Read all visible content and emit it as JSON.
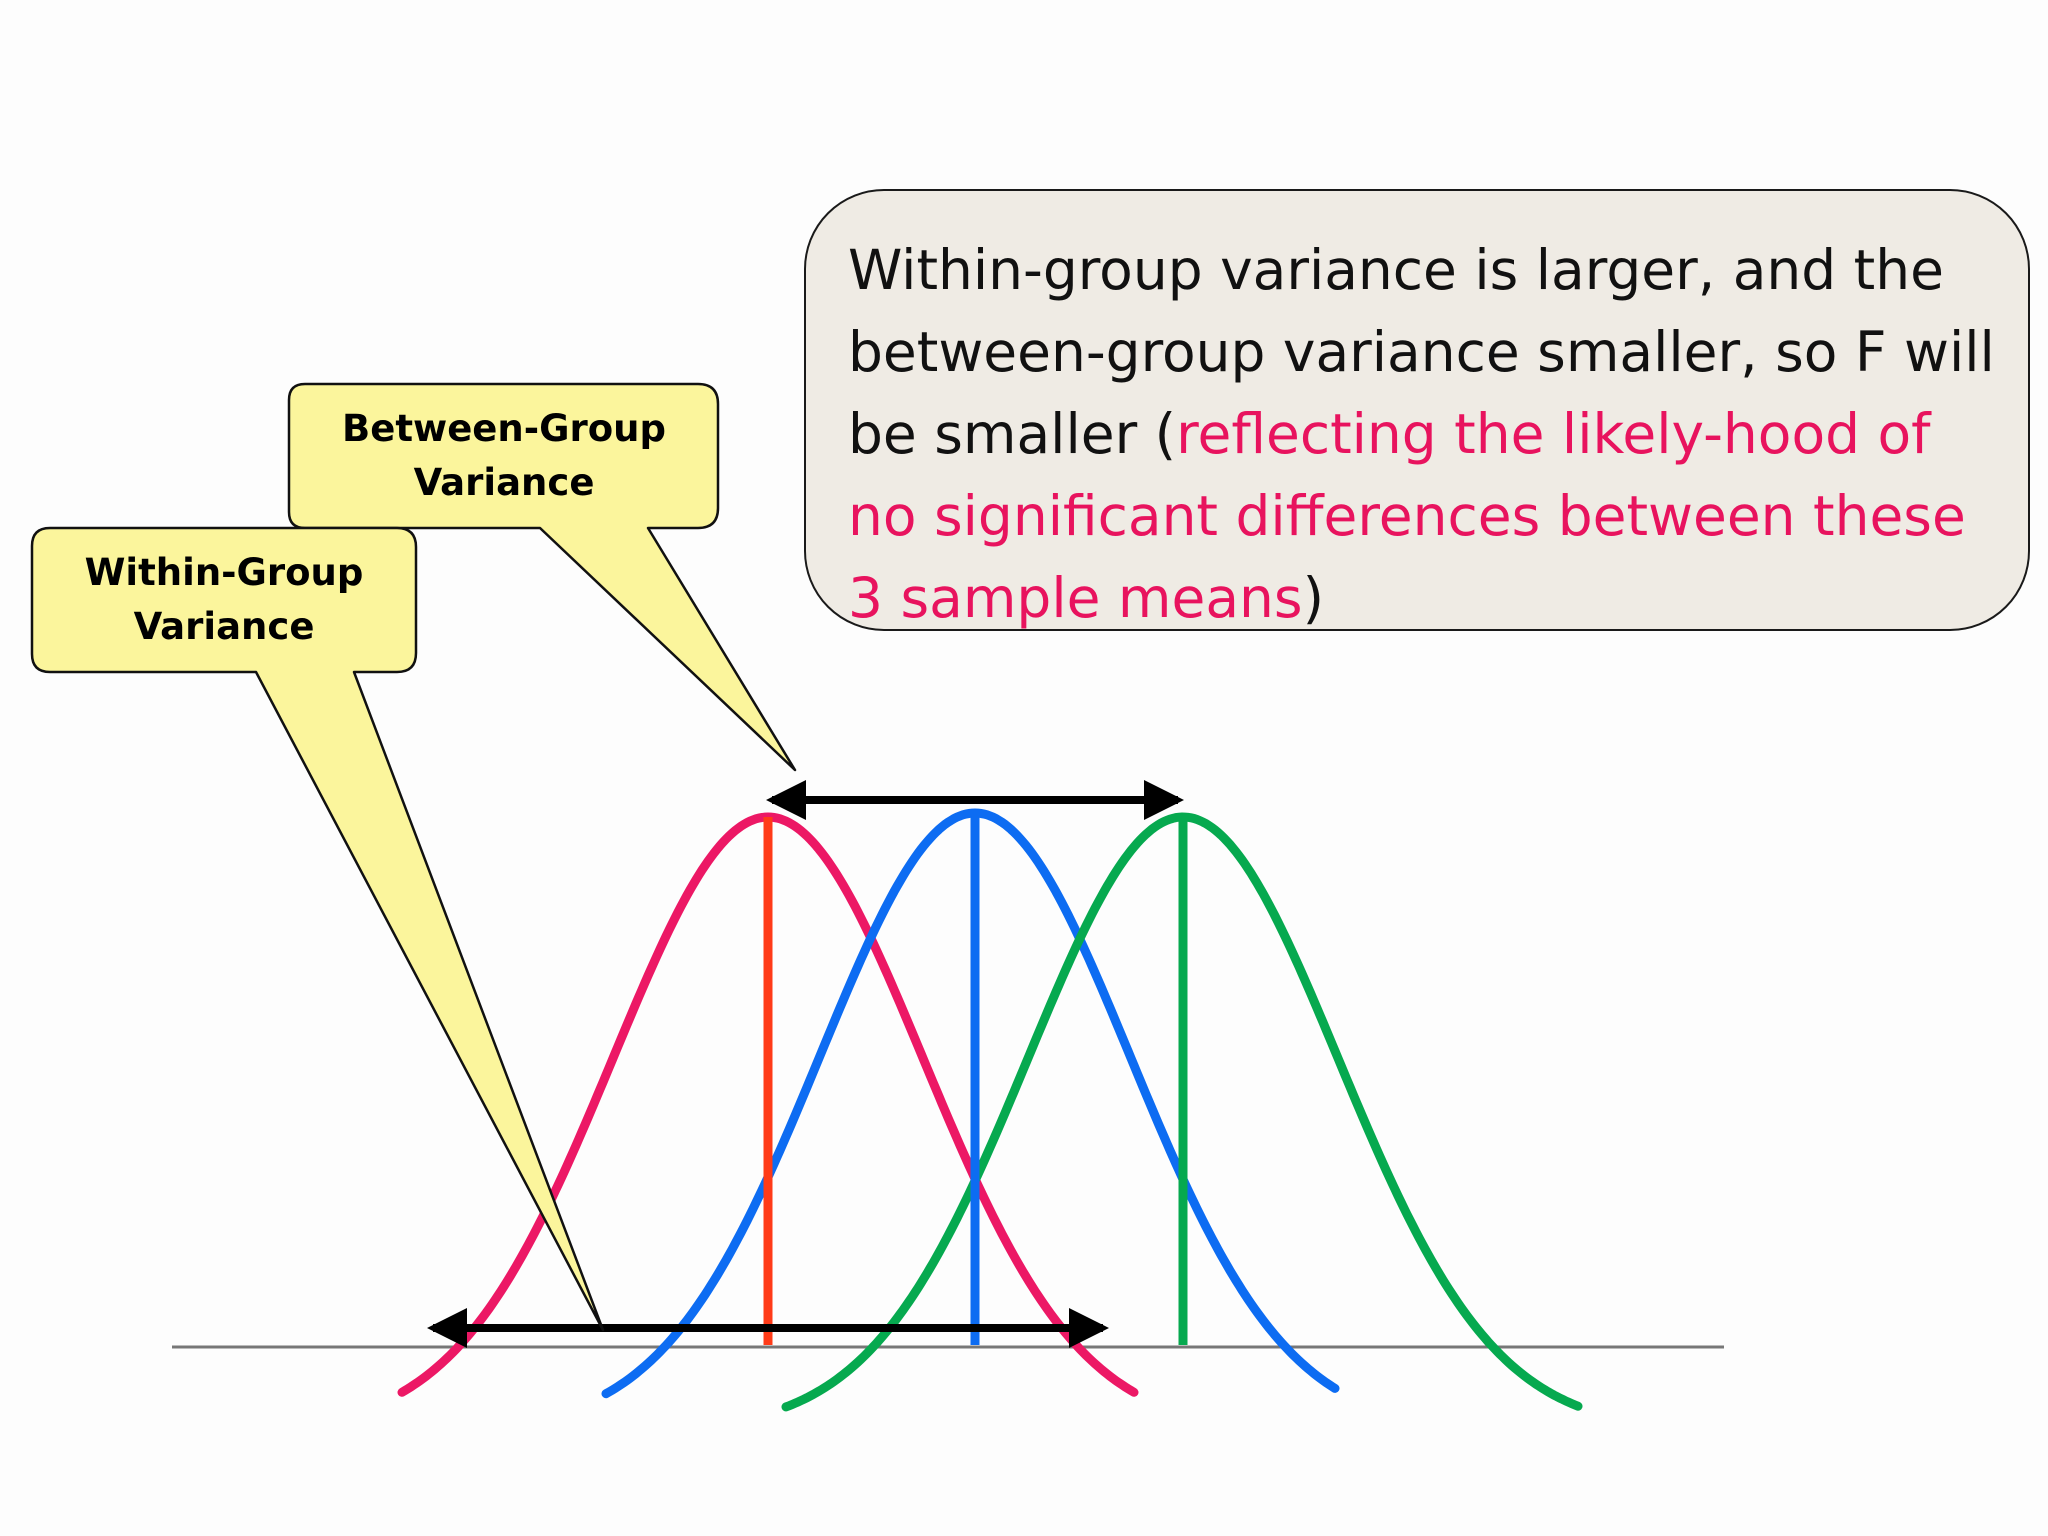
{
  "note": {
    "text_before": "Within-group variance is larger, and the between-group variance smaller, so F will be smaller (",
    "highlight": "reflecting the likely-hood of no significant differences between these 3 sample means",
    "text_after": ")"
  },
  "callouts": {
    "between": {
      "line1": "Between-Group",
      "line2": "Variance"
    },
    "within": {
      "line1": "Within-Group",
      "line2": "Variance"
    }
  },
  "colors": {
    "red_curve": "#ec1865",
    "blue_curve": "#0d6cf2",
    "green_curve": "#06a94f",
    "red_mean_line": "#ff3b18",
    "callout_fill": "#fbf59c",
    "note_fill": "#efebe4",
    "highlight_text": "#e8135e",
    "baseline": "#777777"
  },
  "chart_data": {
    "type": "line",
    "series": [
      {
        "color": "red",
        "mean": 0
      },
      {
        "color": "blue",
        "mean": 1
      },
      {
        "color": "green",
        "mean": 2
      }
    ],
    "shape": "normal distribution curves with vertical mean lines"
  }
}
